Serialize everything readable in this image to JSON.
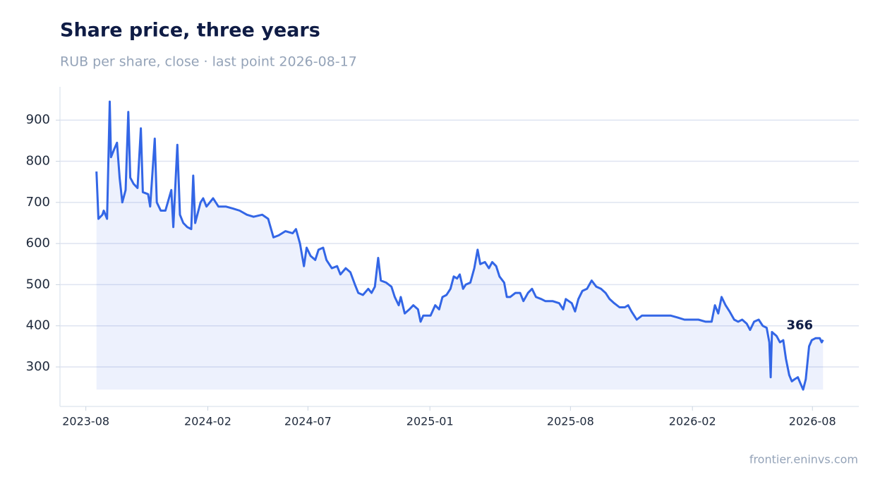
{
  "chart_data": {
    "type": "line",
    "title": "Share price, three years",
    "subtitle": "RUB per share, close · last point 2026-08-17",
    "source": "frontier.eninvs.com",
    "color": "#3366e6",
    "grid": true,
    "x": [
      "2023-08-17",
      "2023-08-20",
      "2023-08-26",
      "2023-08-28",
      "2023-09-02",
      "2023-09-06",
      "2023-09-08",
      "2023-09-13",
      "2023-09-17",
      "2023-09-21",
      "2023-09-25",
      "2023-09-30",
      "2023-10-04",
      "2023-10-07",
      "2023-10-12",
      "2023-10-18",
      "2023-10-23",
      "2023-10-26",
      "2023-11-03",
      "2023-11-06",
      "2023-11-13",
      "2023-11-16",
      "2023-11-22",
      "2023-11-29",
      "2023-12-08",
      "2023-12-11",
      "2023-12-17",
      "2023-12-21",
      "2023-12-26",
      "2024-01-01",
      "2024-01-07",
      "2024-01-10",
      "2024-01-13",
      "2024-01-21",
      "2024-01-25",
      "2024-01-30",
      "2024-02-09",
      "2024-02-17",
      "2024-02-28",
      "2024-03-10",
      "2024-03-20",
      "2024-03-31",
      "2024-04-10",
      "2024-04-23",
      "2024-05-02",
      "2024-05-10",
      "2024-05-18",
      "2024-05-28",
      "2024-06-08",
      "2024-06-13",
      "2024-06-19",
      "2024-06-25",
      "2024-06-29",
      "2024-07-05",
      "2024-07-12",
      "2024-07-17",
      "2024-07-24",
      "2024-07-29",
      "2024-08-06",
      "2024-08-14",
      "2024-08-19",
      "2024-08-27",
      "2024-09-03",
      "2024-09-10",
      "2024-09-15",
      "2024-09-22",
      "2024-09-30",
      "2024-10-05",
      "2024-10-10",
      "2024-10-15",
      "2024-10-19",
      "2024-10-27",
      "2024-11-04",
      "2024-11-09",
      "2024-11-15",
      "2024-11-18",
      "2024-11-24",
      "2024-12-01",
      "2024-12-07",
      "2024-12-14",
      "2024-12-18",
      "2024-12-22",
      "2025-01-02",
      "2025-01-09",
      "2025-01-15",
      "2025-01-20",
      "2025-01-26",
      "2025-02-01",
      "2025-02-06",
      "2025-02-11",
      "2025-02-15",
      "2025-02-20",
      "2025-02-24",
      "2025-03-03",
      "2025-03-09",
      "2025-03-14",
      "2025-03-18",
      "2025-03-25",
      "2025-03-31",
      "2025-04-05",
      "2025-04-11",
      "2025-04-16",
      "2025-04-23",
      "2025-04-27",
      "2025-05-02",
      "2025-05-10",
      "2025-05-17",
      "2025-05-22",
      "2025-05-29",
      "2025-06-04",
      "2025-06-10",
      "2025-06-18",
      "2025-06-24",
      "2025-07-05",
      "2025-07-15",
      "2025-07-21",
      "2025-07-25",
      "2025-08-03",
      "2025-08-08",
      "2025-08-13",
      "2025-08-19",
      "2025-08-26",
      "2025-09-02",
      "2025-09-09",
      "2025-09-16",
      "2025-09-23",
      "2025-09-29",
      "2025-10-06",
      "2025-10-14",
      "2025-10-22",
      "2025-10-27",
      "2025-11-01",
      "2025-11-09",
      "2025-11-17",
      "2025-11-28",
      "2025-12-09",
      "2025-12-19",
      "2025-12-30",
      "2026-01-10",
      "2026-01-20",
      "2026-01-31",
      "2026-02-10",
      "2026-02-21",
      "2026-03-02",
      "2026-03-07",
      "2026-03-12",
      "2026-03-17",
      "2026-03-23",
      "2026-03-29",
      "2026-04-05",
      "2026-04-11",
      "2026-04-17",
      "2026-04-24",
      "2026-04-29",
      "2026-05-05",
      "2026-05-12",
      "2026-05-18",
      "2026-05-24",
      "2026-05-28",
      "2026-05-30",
      "2026-06-01",
      "2026-06-08",
      "2026-06-13",
      "2026-06-18",
      "2026-06-22",
      "2026-06-27",
      "2026-07-01",
      "2026-07-05",
      "2026-07-10",
      "2026-07-14",
      "2026-07-18",
      "2026-07-22",
      "2026-07-27",
      "2026-07-31",
      "2026-08-06",
      "2026-08-12",
      "2026-08-15",
      "2026-08-17"
    ],
    "values": [
      775,
      660,
      670,
      680,
      660,
      945,
      810,
      830,
      845,
      760,
      700,
      730,
      920,
      760,
      745,
      735,
      880,
      725,
      720,
      690,
      855,
      700,
      680,
      680,
      730,
      640,
      840,
      670,
      650,
      640,
      635,
      765,
      650,
      700,
      710,
      690,
      710,
      690,
      690,
      685,
      680,
      670,
      665,
      670,
      660,
      615,
      620,
      630,
      625,
      635,
      600,
      545,
      590,
      570,
      560,
      585,
      590,
      560,
      540,
      545,
      525,
      540,
      530,
      500,
      480,
      475,
      490,
      480,
      495,
      565,
      510,
      505,
      495,
      470,
      450,
      470,
      430,
      440,
      450,
      440,
      410,
      425,
      425,
      450,
      440,
      470,
      475,
      490,
      520,
      515,
      525,
      490,
      500,
      505,
      540,
      585,
      550,
      555,
      540,
      555,
      545,
      520,
      505,
      470,
      470,
      480,
      480,
      460,
      480,
      490,
      470,
      465,
      460,
      460,
      455,
      440,
      465,
      455,
      435,
      465,
      485,
      490,
      510,
      495,
      490,
      480,
      465,
      455,
      445,
      445,
      450,
      435,
      415,
      425,
      425,
      425,
      425,
      425,
      420,
      415,
      415,
      415,
      410,
      410,
      450,
      430,
      470,
      450,
      435,
      415,
      410,
      415,
      405,
      390,
      410,
      415,
      400,
      395,
      360,
      275,
      385,
      375,
      360,
      365,
      320,
      280,
      265,
      270,
      275,
      260,
      245,
      270,
      350,
      365,
      370,
      370,
      360,
      366
    ],
    "xlim": [
      "2023-06-23",
      "2026-10-10"
    ],
    "xticks": [
      {
        "value": "2023-08-01",
        "label": "2023-08"
      },
      {
        "value": "2024-02-01",
        "label": "2024-02"
      },
      {
        "value": "2024-07-01",
        "label": "2024-07"
      },
      {
        "value": "2025-01-01",
        "label": "2025-01"
      },
      {
        "value": "2025-08-01",
        "label": "2025-08"
      },
      {
        "value": "2026-02-01",
        "label": "2026-02"
      },
      {
        "value": "2026-08-01",
        "label": "2026-08"
      }
    ],
    "ylim": [
      204,
      981
    ],
    "yticks": [
      300,
      400,
      500,
      600,
      700,
      800,
      900
    ]
  }
}
